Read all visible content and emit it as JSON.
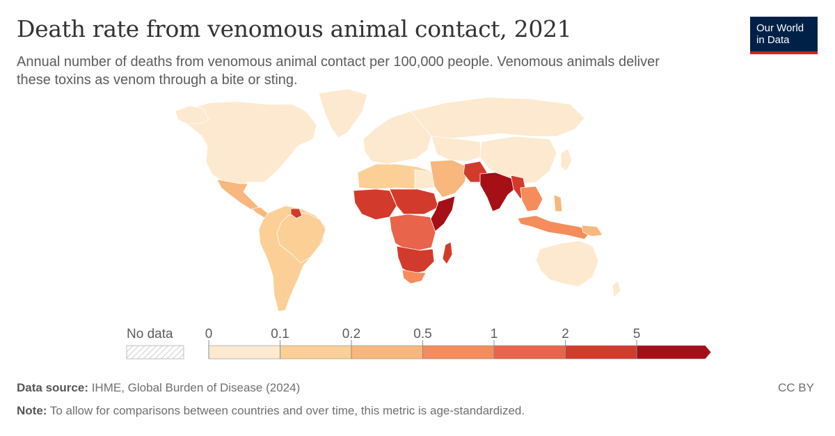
{
  "header": {
    "title": "Death rate from venomous animal contact, 2021",
    "subtitle": "Annual number of deaths from venomous animal contact per 100,000 people. Venomous animals deliver these toxins as venom through a bite or sting."
  },
  "logo": {
    "line1": "Our World",
    "line2": "in Data"
  },
  "legend": {
    "no_data_label": "No data",
    "ticks": [
      "0",
      "0.1",
      "0.2",
      "0.5",
      "1",
      "2",
      "5"
    ],
    "colors": [
      "#fde9cf",
      "#fbcf96",
      "#f8b77c",
      "#f58c5c",
      "#e8644a",
      "#d23b2c",
      "#a50f15"
    ],
    "no_data_color": "#dddddd"
  },
  "footer": {
    "source_label": "Data source:",
    "source_text": " IHME, Global Burden of Disease (2024)",
    "note_label": "Note:",
    "note_text": " To allow for comparisons between countries and over time, this metric is age-standardized.",
    "license": "CC BY"
  },
  "map_data": {
    "regions": [
      {
        "name": "North America",
        "level": 1
      },
      {
        "name": "Greenland",
        "level": 1
      },
      {
        "name": "Mexico",
        "level": 3
      },
      {
        "name": "Central America",
        "level": 3
      },
      {
        "name": "South America",
        "level": 3
      },
      {
        "name": "Brazil",
        "level": 3
      },
      {
        "name": "Guyana",
        "level": 6
      },
      {
        "name": "Europe",
        "level": 1
      },
      {
        "name": "Russia",
        "level": 1
      },
      {
        "name": "North Africa",
        "level": 2
      },
      {
        "name": "Middle East",
        "level": 3
      },
      {
        "name": "West Africa",
        "level": 5
      },
      {
        "name": "Sahel",
        "level": 5
      },
      {
        "name": "Horn of Africa",
        "level": 6
      },
      {
        "name": "Central Africa",
        "level": 5
      },
      {
        "name": "Southern Africa",
        "level": 4
      },
      {
        "name": "South Africa",
        "level": 3
      },
      {
        "name": "Madagascar",
        "level": 5
      },
      {
        "name": "India",
        "level": 6
      },
      {
        "name": "Pakistan",
        "level": 5
      },
      {
        "name": "China",
        "level": 1
      },
      {
        "name": "Southeast Asia",
        "level": 4
      },
      {
        "name": "Indonesia",
        "level": 4
      },
      {
        "name": "Australia",
        "level": 1
      }
    ]
  }
}
